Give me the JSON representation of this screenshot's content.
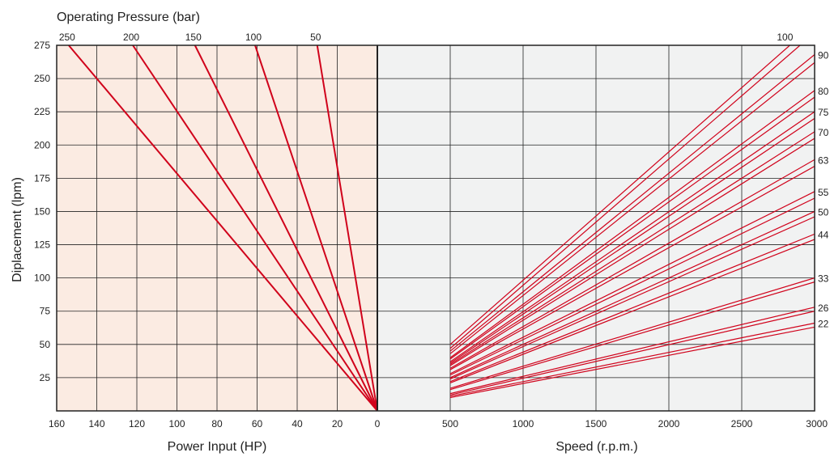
{
  "chart_data": [
    {
      "type": "line",
      "panel": "power",
      "title": "Operating Pressure  (bar)",
      "xlabel": "Power Input  (HP)",
      "ylabel": "Diplacement  (lpm)",
      "xlim": [
        160,
        0
      ],
      "ylim": [
        0,
        275
      ],
      "x_ticks": [
        160,
        140,
        120,
        100,
        80,
        60,
        40,
        20,
        0
      ],
      "y_ticks": [
        25,
        50,
        75,
        100,
        125,
        150,
        175,
        200,
        225,
        250,
        275
      ],
      "grid": true,
      "background": "#fbebe2",
      "line_color": "#d0021b",
      "series": [
        {
          "name": "250",
          "x": [
            0,
            154
          ],
          "y": [
            0,
            275
          ]
        },
        {
          "name": "200",
          "x": [
            0,
            122
          ],
          "y": [
            0,
            275
          ]
        },
        {
          "name": "150",
          "x": [
            0,
            91
          ],
          "y": [
            0,
            275
          ]
        },
        {
          "name": "100",
          "x": [
            0,
            61
          ],
          "y": [
            0,
            275
          ]
        },
        {
          "name": "50",
          "x": [
            0,
            30
          ],
          "y": [
            0,
            275
          ]
        }
      ]
    },
    {
      "type": "line",
      "panel": "speed",
      "xlabel": "Speed  (r.p.m.)",
      "xlim": [
        0,
        3000
      ],
      "ylim": [
        0,
        275
      ],
      "x_ticks": [
        0,
        500,
        1000,
        1500,
        2000,
        2500,
        3000
      ],
      "grid": true,
      "background": "#f1f2f2",
      "line_color": "#d0021b",
      "series": [
        {
          "name": "100",
          "x": [
            500,
            2830
          ],
          "y": [
            50,
            275
          ]
        },
        {
          "name": "",
          "x": [
            500,
            2900
          ],
          "y": [
            47,
            275
          ]
        },
        {
          "name": "90",
          "x": [
            500,
            3000
          ],
          "y": [
            45,
            268
          ]
        },
        {
          "name": "",
          "x": [
            500,
            3000
          ],
          "y": [
            43,
            262
          ]
        },
        {
          "name": "80",
          "x": [
            500,
            3000
          ],
          "y": [
            40,
            241
          ]
        },
        {
          "name": "",
          "x": [
            500,
            3000
          ],
          "y": [
            39,
            236
          ]
        },
        {
          "name": "75",
          "x": [
            500,
            3000
          ],
          "y": [
            37,
            225
          ]
        },
        {
          "name": "",
          "x": [
            500,
            3000
          ],
          "y": [
            36,
            220
          ]
        },
        {
          "name": "70",
          "x": [
            500,
            3000
          ],
          "y": [
            35,
            210
          ]
        },
        {
          "name": "",
          "x": [
            500,
            3000
          ],
          "y": [
            34,
            205
          ]
        },
        {
          "name": "63",
          "x": [
            500,
            3000
          ],
          "y": [
            32,
            189
          ]
        },
        {
          "name": "",
          "x": [
            500,
            3000
          ],
          "y": [
            31,
            184
          ]
        },
        {
          "name": "55",
          "x": [
            500,
            3000
          ],
          "y": [
            28,
            165
          ]
        },
        {
          "name": "",
          "x": [
            500,
            3000
          ],
          "y": [
            27,
            160
          ]
        },
        {
          "name": "50",
          "x": [
            500,
            3000
          ],
          "y": [
            25,
            150
          ]
        },
        {
          "name": "",
          "x": [
            500,
            3000
          ],
          "y": [
            24,
            146
          ]
        },
        {
          "name": "44",
          "x": [
            500,
            3000
          ],
          "y": [
            22,
            133
          ]
        },
        {
          "name": "",
          "x": [
            500,
            3000
          ],
          "y": [
            21,
            129
          ]
        },
        {
          "name": "33",
          "x": [
            500,
            3000
          ],
          "y": [
            17,
            100
          ]
        },
        {
          "name": "",
          "x": [
            500,
            3000
          ],
          "y": [
            16,
            97
          ]
        },
        {
          "name": "26",
          "x": [
            500,
            3000
          ],
          "y": [
            13,
            78
          ]
        },
        {
          "name": "",
          "x": [
            500,
            3000
          ],
          "y": [
            12,
            75
          ]
        },
        {
          "name": "22",
          "x": [
            500,
            3000
          ],
          "y": [
            11,
            66
          ]
        },
        {
          "name": "",
          "x": [
            500,
            3000
          ],
          "y": [
            10,
            63
          ]
        }
      ]
    }
  ]
}
